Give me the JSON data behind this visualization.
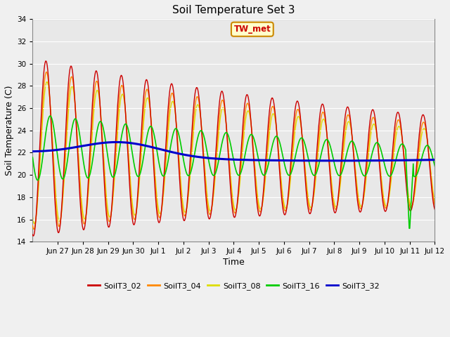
{
  "title": "Soil Temperature Set 3",
  "xlabel": "Time",
  "ylabel": "Soil Temperature (C)",
  "ylim": [
    14,
    34
  ],
  "yticks": [
    14,
    16,
    18,
    20,
    22,
    24,
    26,
    28,
    30,
    32,
    34
  ],
  "fig_bg_color": "#f0f0f0",
  "plot_bg_color": "#e8e8e8",
  "series_colors": {
    "SoilT3_02": "#cc0000",
    "SoilT3_04": "#ff8800",
    "SoilT3_08": "#dddd00",
    "SoilT3_16": "#00cc00",
    "SoilT3_32": "#0000cc"
  },
  "annotation_text": "TW_met",
  "annotation_bg": "#ffffcc",
  "annotation_border": "#cc8800",
  "annotation_text_color": "#cc0000",
  "tick_labels": [
    "Jun 27",
    "Jun 28",
    "Jun 29",
    "Jun 30",
    "Jul 1",
    "Jul 2",
    "Jul 3",
    "Jul 4",
    "Jul 5",
    "Jul 6",
    "Jul 7",
    "Jul 8",
    "Jul 9",
    "Jul 10",
    "Jul 11",
    "Jul 12"
  ],
  "tick_positions": [
    1,
    2,
    3,
    4,
    5,
    6,
    7,
    8,
    9,
    10,
    11,
    12,
    13,
    14,
    15,
    16
  ]
}
